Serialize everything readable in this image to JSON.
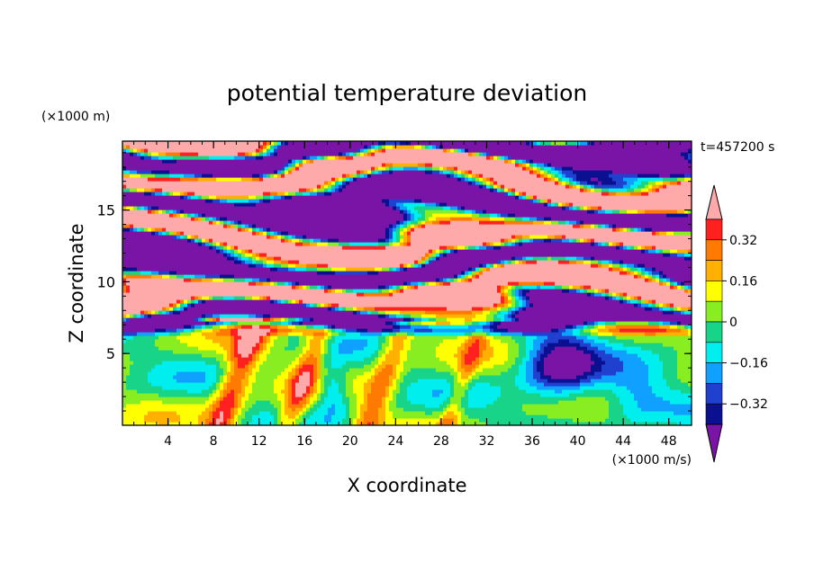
{
  "chart_data": {
    "type": "heatmap",
    "title": "potential temperature deviation",
    "xlabel": "X coordinate",
    "ylabel": "Z coordinate",
    "x_unit_label": "(×1000 m/s)",
    "y_unit_label": "(×1000 m)",
    "time_label": "t=457200 s",
    "xlim": [
      0,
      50
    ],
    "ylim": [
      0,
      19.8
    ],
    "x_ticks": [
      4,
      8,
      12,
      16,
      20,
      24,
      28,
      32,
      36,
      40,
      44,
      48
    ],
    "x_minor_step": 1,
    "y_ticks": [
      5,
      10,
      15
    ],
    "y_minor_step": 1,
    "colorbar": {
      "levels": [
        -0.4,
        -0.32,
        -0.24,
        -0.16,
        -0.08,
        0,
        0.08,
        0.16,
        0.24,
        0.32,
        0.4
      ],
      "tick_labels": [
        "0.32",
        "0.16",
        "0",
        "−0.16",
        "−0.32"
      ],
      "tick_values": [
        0.32,
        0.16,
        0,
        -0.16,
        -0.32
      ],
      "colors": [
        "#ffaaaa",
        "#ff2020",
        "#ff7a00",
        "#ffb000",
        "#ffff00",
        "#88ee22",
        "#18d488",
        "#00eeee",
        "#10a0ff",
        "#2040d0",
        "#0a1090",
        "#7a14a6"
      ],
      "upper_extend_color": "#ffaaaa",
      "lower_extend_color": "#7a14a6"
    },
    "field_description": "Upper layer (z>7) alternating bands of strong positive (pink) and strong negative (purple) anomalies; lower layer (z<7) weak mixed anomalies around zero with warm plumes and a cold pocket near x≈38"
  }
}
